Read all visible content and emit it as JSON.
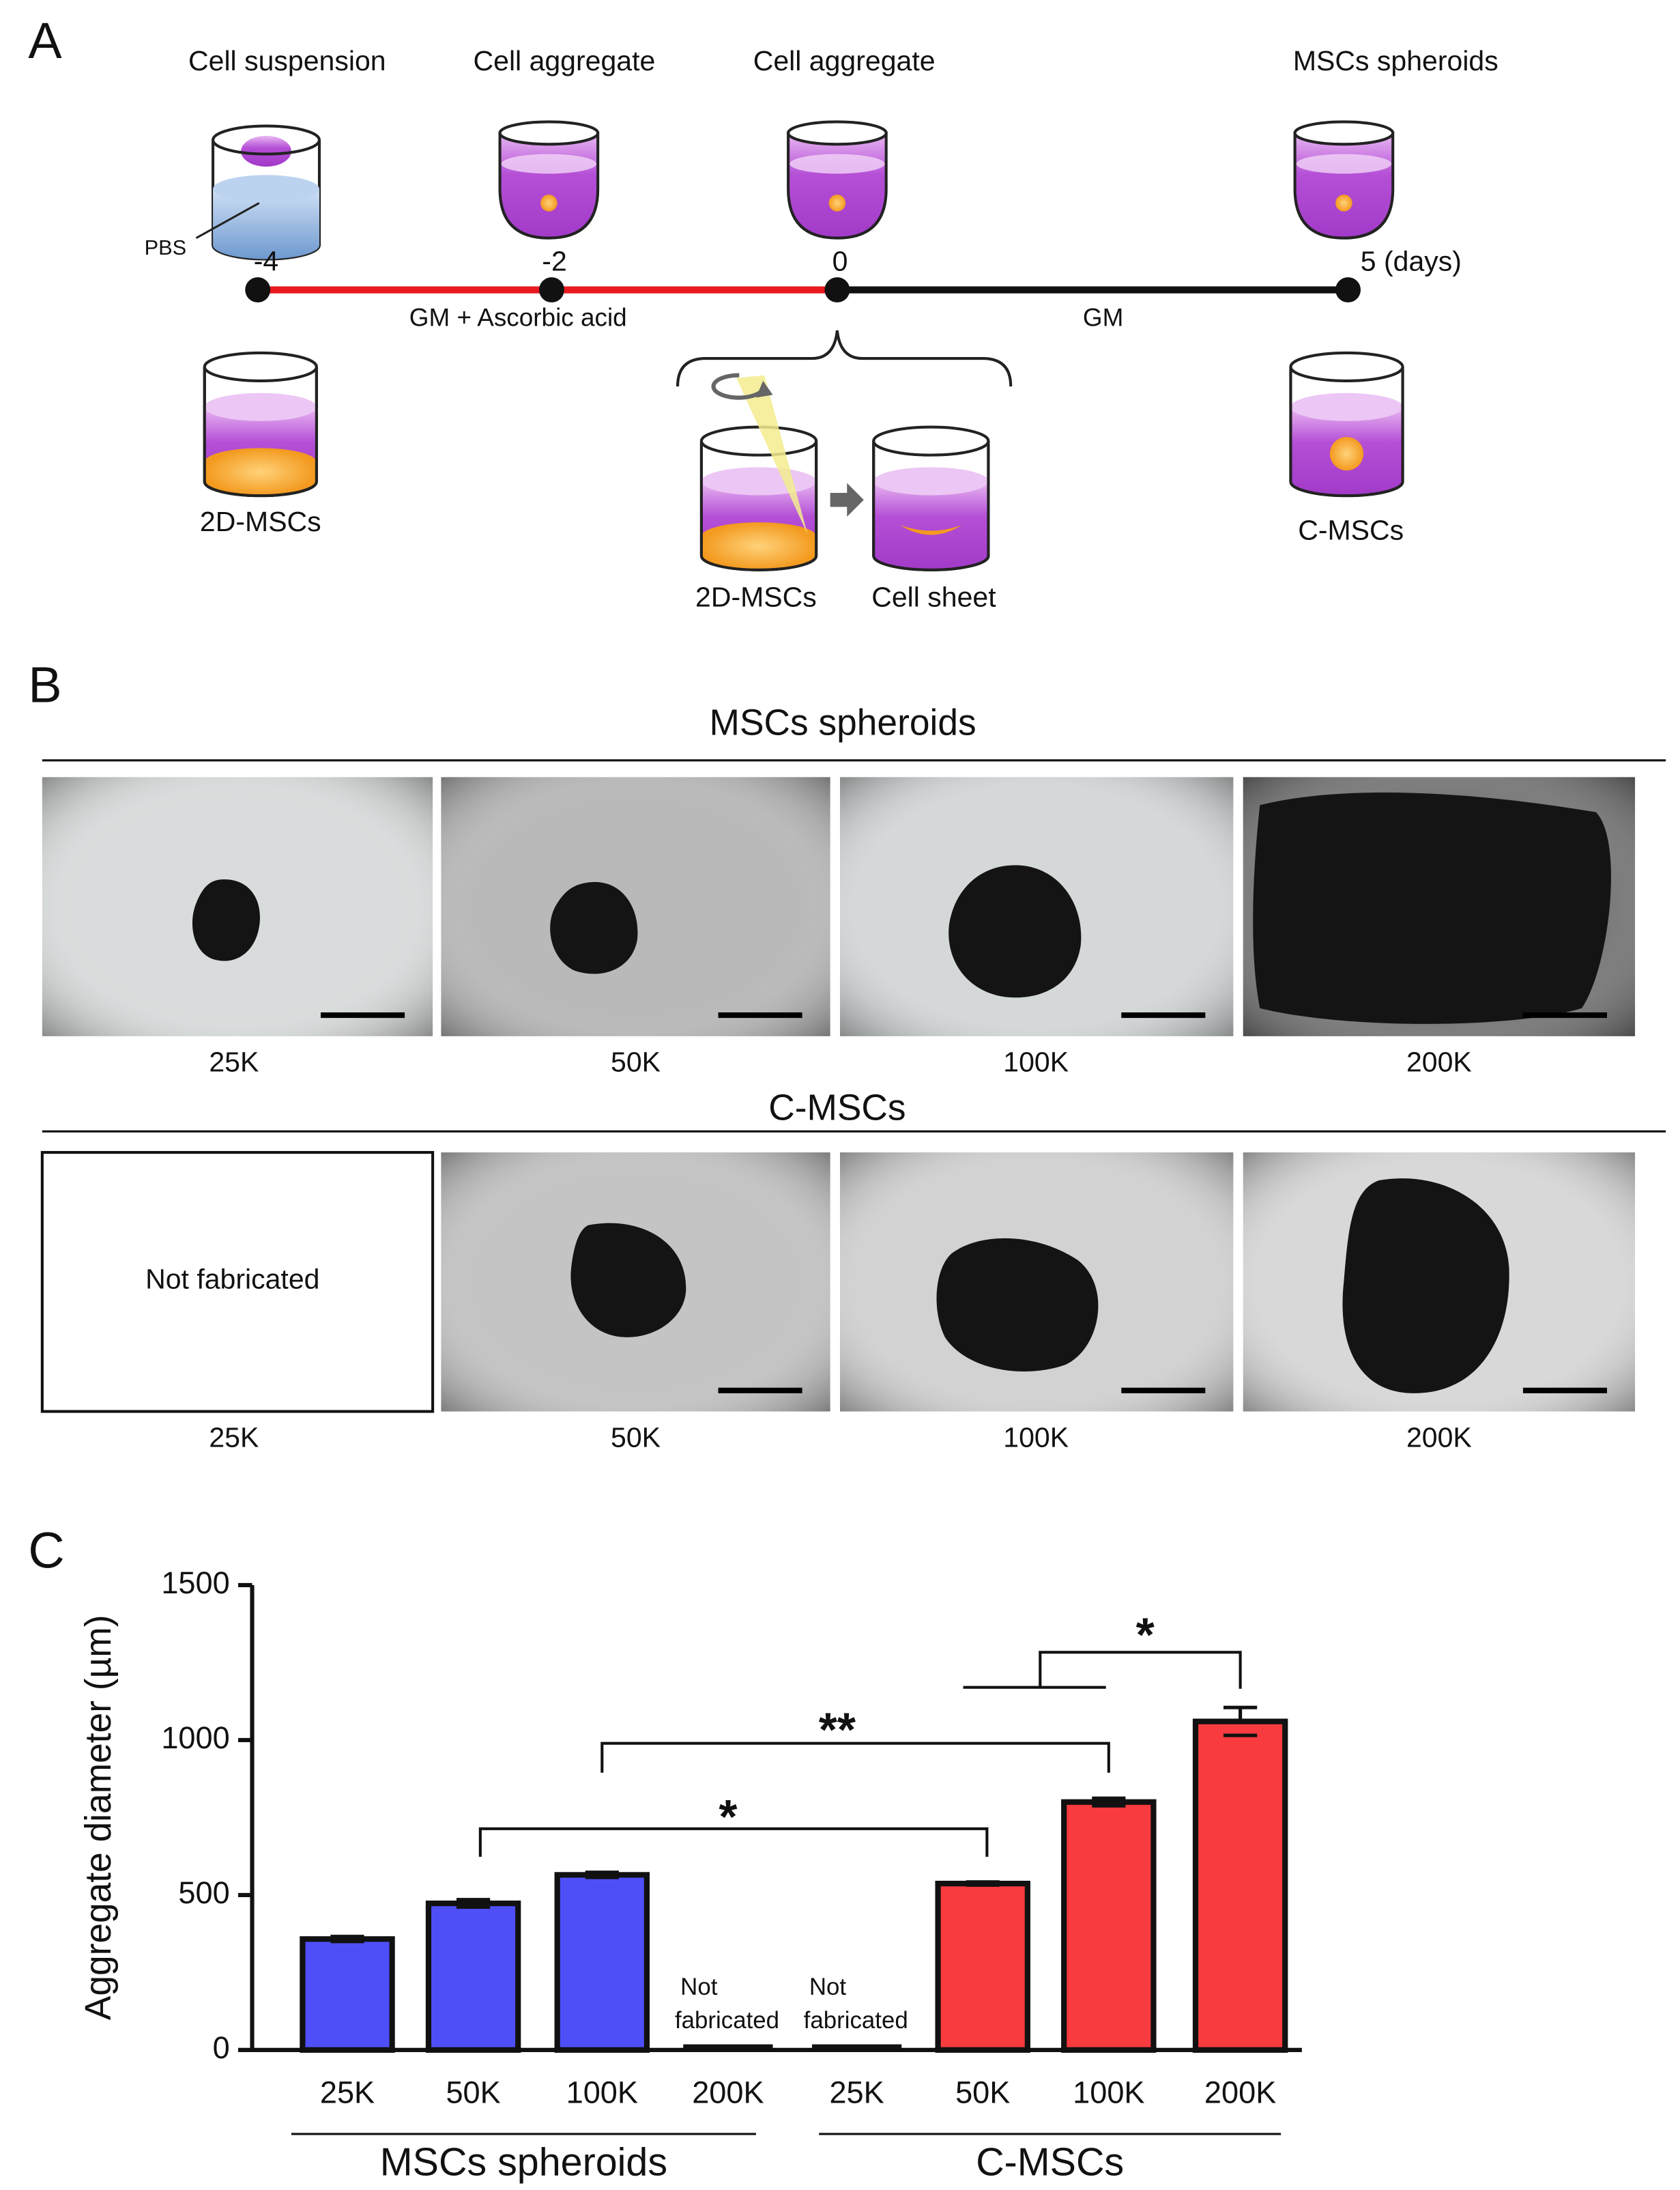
{
  "panel_a": {
    "letter": "A",
    "stages": [
      "Cell suspension",
      "Cell aggregate",
      "Cell aggregate",
      "MSCs spheroids"
    ],
    "pbs": "PBS",
    "timepoints": [
      "-4",
      "-2",
      "0",
      "5 (days)"
    ],
    "phase1": "GM + Ascorbic acid",
    "phase2": "GM",
    "left_cup": "2D-MSCs",
    "right_cup": "C-MSCs",
    "sheet_from": "2D-MSCs",
    "sheet_to": "Cell sheet"
  },
  "panel_b": {
    "letter": "B",
    "row1_title": "MSCs spheroids",
    "row1_labels": [
      "25K",
      "50K",
      "100K",
      "200K"
    ],
    "row2_title": "C-MSCs",
    "row2_labels": [
      "25K",
      "50K",
      "100K",
      "200K"
    ],
    "not_fabricated": "Not fabricated"
  },
  "chart_data": {
    "type": "bar",
    "letter": "C",
    "y_label": "Aggregate diameter (µm)",
    "ylim": [
      0,
      1500
    ],
    "yticks": [
      0,
      500,
      1000,
      1500
    ],
    "categories": [
      "25K",
      "50K",
      "100K",
      "200K"
    ],
    "series": [
      {
        "name": "MSCs spheroids",
        "color": "#4f4ff7",
        "values": [
          358,
          473,
          565,
          null
        ],
        "errors": [
          8,
          12,
          8,
          null
        ]
      },
      {
        "name": "C-MSCs",
        "color": "#f73b3f",
        "values": [
          null,
          537,
          800,
          1060
        ],
        "errors": [
          null,
          5,
          12,
          45
        ]
      }
    ],
    "annotations": [
      [
        "Not",
        "fabricated"
      ],
      [
        "Not",
        "fabricated"
      ]
    ],
    "significance": [
      "*",
      "**",
      "*"
    ]
  }
}
